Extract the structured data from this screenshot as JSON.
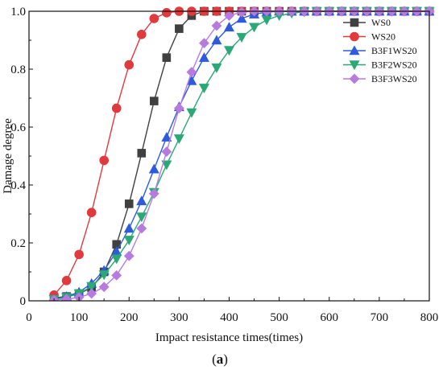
{
  "chart_data": {
    "type": "line",
    "xlabel": "Impact resistance times(times)",
    "ylabel": "Damage degree",
    "panel_label_open": "(",
    "panel_label_letter": "a",
    "panel_label_close": ")",
    "xlim": [
      0,
      800
    ],
    "ylim": [
      0,
      1.0
    ],
    "xticks": [
      0,
      100,
      200,
      300,
      400,
      500,
      600,
      700,
      800
    ],
    "yticks": [
      0,
      0.2,
      0.4,
      0.6,
      0.8,
      1.0
    ],
    "xtick_labels": [
      "0",
      "100",
      "200",
      "300",
      "400",
      "500",
      "600",
      "700",
      "800"
    ],
    "ytick_labels": [
      "0",
      "0.2",
      "0.4",
      "0.6",
      "0.8",
      "1.0"
    ],
    "grid": false,
    "legend_position": "top-right",
    "series": [
      {
        "name": "WS0",
        "color": "#404040",
        "marker": "square",
        "x": [
          50,
          75,
          100,
          125,
          150,
          175,
          200,
          225,
          250,
          275,
          300,
          325,
          350,
          375,
          400,
          425,
          450,
          475,
          500,
          525,
          550,
          575,
          600,
          625,
          650,
          675,
          700,
          725,
          750,
          775,
          800
        ],
        "y": [
          0.01,
          0.015,
          0.025,
          0.045,
          0.1,
          0.195,
          0.335,
          0.51,
          0.69,
          0.84,
          0.94,
          0.985,
          1.0,
          1.0,
          1.0,
          1.0,
          1.0,
          1.0,
          1.0,
          1.0,
          1.0,
          1.0,
          1.0,
          1.0,
          1.0,
          1.0,
          1.0,
          1.0,
          1.0,
          1.0,
          1.0
        ]
      },
      {
        "name": "WS20",
        "color": "#e0393e",
        "marker": "circle",
        "x": [
          50,
          75,
          100,
          125,
          150,
          175,
          200,
          225,
          250,
          275,
          300,
          325,
          350,
          375,
          400,
          425,
          450,
          475,
          500,
          525,
          550,
          575,
          600,
          625,
          650,
          675,
          700,
          725,
          750,
          775,
          800
        ],
        "y": [
          0.02,
          0.07,
          0.16,
          0.305,
          0.485,
          0.665,
          0.815,
          0.92,
          0.975,
          0.995,
          1.0,
          1.0,
          1.0,
          1.0,
          1.0,
          1.0,
          1.0,
          1.0,
          1.0,
          1.0,
          1.0,
          1.0,
          1.0,
          1.0,
          1.0,
          1.0,
          1.0,
          1.0,
          1.0,
          1.0,
          1.0
        ]
      },
      {
        "name": "B3F1WS20",
        "color": "#2e5bde",
        "marker": "triangle-up",
        "x": [
          50,
          75,
          100,
          125,
          150,
          175,
          200,
          225,
          250,
          275,
          300,
          325,
          350,
          375,
          400,
          425,
          450,
          475,
          500,
          525,
          550,
          575,
          600,
          625,
          650,
          675,
          700,
          725,
          750,
          775,
          800
        ],
        "y": [
          0.005,
          0.015,
          0.03,
          0.06,
          0.105,
          0.17,
          0.25,
          0.345,
          0.455,
          0.565,
          0.67,
          0.76,
          0.84,
          0.9,
          0.945,
          0.975,
          0.99,
          0.997,
          1.0,
          1.0,
          1.0,
          1.0,
          1.0,
          1.0,
          1.0,
          1.0,
          1.0,
          1.0,
          1.0,
          1.0,
          1.0
        ]
      },
      {
        "name": "B3F2WS20",
        "color": "#2aa876",
        "marker": "triangle-down",
        "x": [
          50,
          75,
          100,
          125,
          150,
          175,
          200,
          225,
          250,
          275,
          300,
          325,
          350,
          375,
          400,
          425,
          450,
          475,
          500,
          525,
          550,
          575,
          600,
          625,
          650,
          675,
          700,
          725,
          750,
          775,
          800
        ],
        "y": [
          0.005,
          0.012,
          0.025,
          0.05,
          0.09,
          0.145,
          0.21,
          0.29,
          0.375,
          0.47,
          0.56,
          0.65,
          0.735,
          0.805,
          0.865,
          0.91,
          0.945,
          0.97,
          0.985,
          0.993,
          0.998,
          1.0,
          1.0,
          1.0,
          1.0,
          1.0,
          1.0,
          1.0,
          1.0,
          1.0,
          1.0
        ]
      },
      {
        "name": "B3F3WS20",
        "color": "#b77be0",
        "marker": "diamond",
        "x": [
          50,
          75,
          100,
          125,
          150,
          175,
          200,
          225,
          250,
          275,
          300,
          325,
          350,
          375,
          400,
          425,
          450,
          475,
          500,
          525,
          550,
          575,
          600,
          625,
          650,
          675,
          700,
          725,
          750,
          775,
          800
        ],
        "y": [
          0.003,
          0.006,
          0.012,
          0.025,
          0.048,
          0.088,
          0.155,
          0.25,
          0.37,
          0.515,
          0.665,
          0.79,
          0.89,
          0.95,
          0.985,
          0.997,
          1.0,
          1.0,
          1.0,
          1.0,
          1.0,
          1.0,
          1.0,
          1.0,
          1.0,
          1.0,
          1.0,
          1.0,
          1.0,
          1.0,
          1.0
        ]
      }
    ]
  }
}
